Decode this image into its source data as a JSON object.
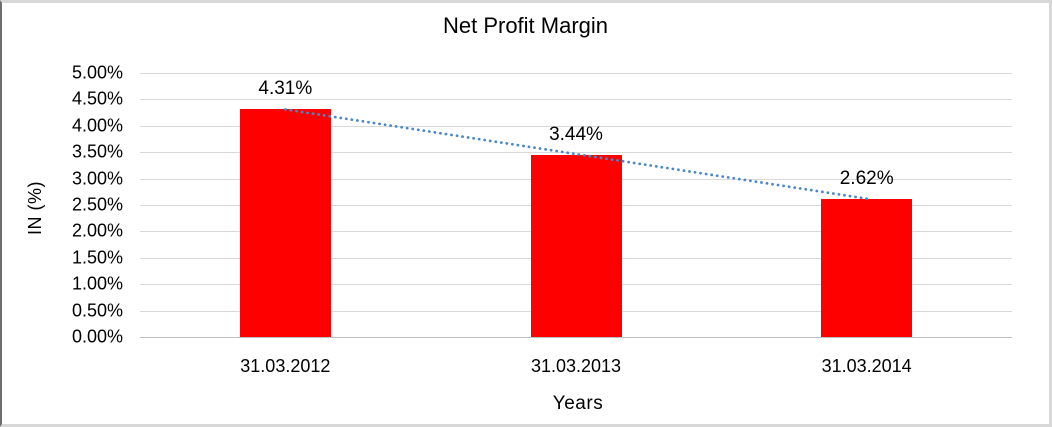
{
  "chart_data": {
    "type": "bar",
    "title": "Net Profit Margin",
    "categories": [
      "31.03.2012",
      "31.03.2013",
      "31.03.2014"
    ],
    "series": [
      {
        "name": "Net Profit Margin",
        "values": [
          4.31,
          3.44,
          2.62
        ]
      }
    ],
    "data_labels": [
      "4.31%",
      "3.44%",
      "2.62%"
    ],
    "xlabel": "Years",
    "ylabel": "IN (%)",
    "ylim": [
      0,
      5
    ],
    "ytick_step": 0.5,
    "ytick_labels": [
      "5.00%",
      "4.50%",
      "4.00%",
      "3.50%",
      "3.00%",
      "2.50%",
      "2.00%",
      "1.50%",
      "1.00%",
      "0.50%",
      "0.00%"
    ],
    "grid": true,
    "legend_position": "none",
    "trendline": {
      "type": "linear",
      "style": "dotted"
    },
    "colors": {
      "bar": "#ff0000",
      "trendline": "#4a86c8",
      "gridline": "#d9d9d9",
      "axis_line": "#bfbfbf",
      "text": "#000000"
    }
  }
}
